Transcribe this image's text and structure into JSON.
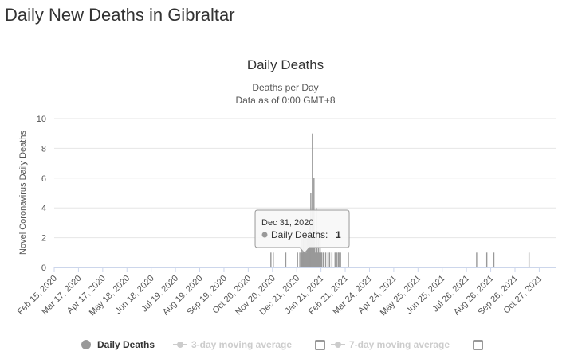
{
  "page": {
    "title": "Daily New Deaths in Gibraltar"
  },
  "chart_data": {
    "type": "bar",
    "title": "Daily Deaths",
    "subtitle_lines": [
      "Deaths per Day",
      "Data as of 0:00 GMT+8"
    ],
    "xlabel": "",
    "ylabel": "Novel Coronavirus Daily Deaths",
    "ylim": [
      0,
      10
    ],
    "yticks": [
      0,
      2,
      4,
      6,
      8,
      10
    ],
    "grid": true,
    "xlim": [
      "2020-02-15",
      "2021-11-18"
    ],
    "x_tick_labels": [
      "Feb 15, 2020",
      "Mar 17, 2020",
      "Apr 17, 2020",
      "May 18, 2020",
      "Jun 18, 2020",
      "Jul 19, 2020",
      "Aug 19, 2020",
      "Sep 19, 2020",
      "Oct 20, 2020",
      "Nov 20, 2020",
      "Dec 21, 2020",
      "Jan 21, 2021",
      "Feb 21, 2021",
      "Mar 24, 2021",
      "Apr 24, 2021",
      "May 25, 2021",
      "Jun 25, 2021",
      "Jul 26, 2021",
      "Aug 26, 2021",
      "Sep 26, 2021",
      "Oct 27, 2021"
    ],
    "x_tick_dates": [
      "2020-02-15",
      "2020-03-17",
      "2020-04-17",
      "2020-05-18",
      "2020-06-18",
      "2020-07-19",
      "2020-08-19",
      "2020-09-19",
      "2020-10-20",
      "2020-11-20",
      "2020-12-21",
      "2021-01-21",
      "2021-02-21",
      "2021-03-24",
      "2021-04-24",
      "2021-05-25",
      "2021-06-25",
      "2021-07-26",
      "2021-08-26",
      "2021-09-26",
      "2021-10-27"
    ],
    "series": [
      {
        "name": "Daily Deaths",
        "color": "#999999",
        "points": [
          [
            "2020-11-18",
            1
          ],
          [
            "2020-11-21",
            1
          ],
          [
            "2020-12-07",
            1
          ],
          [
            "2020-12-22",
            1
          ],
          [
            "2020-12-25",
            1
          ],
          [
            "2020-12-27",
            2
          ],
          [
            "2020-12-28",
            1
          ],
          [
            "2020-12-29",
            2
          ],
          [
            "2020-12-30",
            2
          ],
          [
            "2020-12-31",
            1
          ],
          [
            "2021-01-01",
            2
          ],
          [
            "2021-01-02",
            1
          ],
          [
            "2021-01-03",
            2
          ],
          [
            "2021-01-04",
            2
          ],
          [
            "2021-01-05",
            2
          ],
          [
            "2021-01-06",
            2
          ],
          [
            "2021-01-07",
            3
          ],
          [
            "2021-01-08",
            5
          ],
          [
            "2021-01-09",
            2
          ],
          [
            "2021-01-10",
            9
          ],
          [
            "2021-01-11",
            2
          ],
          [
            "2021-01-12",
            6
          ],
          [
            "2021-01-13",
            2
          ],
          [
            "2021-01-14",
            1
          ],
          [
            "2021-01-15",
            4
          ],
          [
            "2021-01-16",
            2
          ],
          [
            "2021-01-17",
            1
          ],
          [
            "2021-01-18",
            2
          ],
          [
            "2021-01-19",
            1
          ],
          [
            "2021-01-20",
            2
          ],
          [
            "2021-01-21",
            1
          ],
          [
            "2021-01-22",
            1
          ],
          [
            "2021-01-24",
            1
          ],
          [
            "2021-01-27",
            1
          ],
          [
            "2021-01-30",
            1
          ],
          [
            "2021-02-01",
            1
          ],
          [
            "2021-02-04",
            1
          ],
          [
            "2021-02-08",
            1
          ],
          [
            "2021-02-10",
            1
          ],
          [
            "2021-02-12",
            1
          ],
          [
            "2021-02-13",
            1
          ],
          [
            "2021-02-15",
            1
          ],
          [
            "2021-02-25",
            1
          ],
          [
            "2021-08-08",
            1
          ],
          [
            "2021-08-21",
            1
          ],
          [
            "2021-08-30",
            1
          ],
          [
            "2021-10-14",
            1
          ]
        ]
      }
    ],
    "tooltip": {
      "date": "Dec 31, 2020",
      "series_label": "Daily Deaths:",
      "value": "1"
    },
    "legend": {
      "placement": "bottom",
      "items": [
        {
          "label": "Daily Deaths",
          "color": "#999999",
          "active": true,
          "has_checkbox": false
        },
        {
          "label": "3-day moving average",
          "color": "#cccccc",
          "active": false,
          "has_checkbox": true,
          "checked": false
        },
        {
          "label": "7-day moving average",
          "color": "#cccccc",
          "active": false,
          "has_checkbox": true,
          "checked": false
        }
      ]
    }
  }
}
